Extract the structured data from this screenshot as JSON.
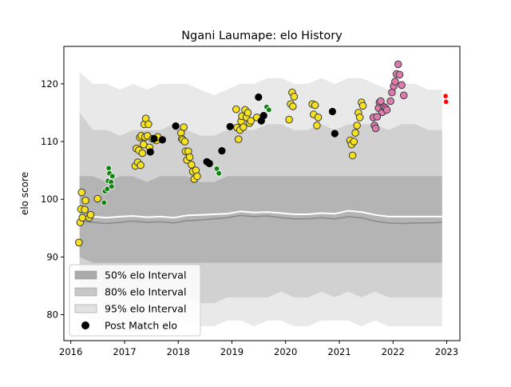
{
  "chart_data": {
    "type": "scatter",
    "title": "Ngani Laumape: elo History",
    "xlabel": "",
    "ylabel": "elo score",
    "xlim": [
      "2015-11-15",
      "2023-04-01"
    ],
    "ylim": [
      75.5,
      126.5
    ],
    "x_ticks": [
      "2016",
      "2017",
      "2018",
      "2019",
      "2020",
      "2021",
      "2022",
      "2023"
    ],
    "y_ticks": [
      80,
      90,
      100,
      110,
      120
    ],
    "grid": false,
    "legend_position": "lower-left",
    "legend": [
      {
        "label": "50% elo Interval",
        "kind": "patch",
        "color": "#aaaaaa"
      },
      {
        "label": "80% elo Interval",
        "kind": "patch",
        "color": "#c8c8c8"
      },
      {
        "label": "95% elo Interval",
        "kind": "patch",
        "color": "#e2e2e2"
      },
      {
        "label": "Post Match elo",
        "kind": "marker",
        "color": "#000000"
      }
    ],
    "band_x": [
      "2016-03-01",
      "2016-06-01",
      "2016-09-01",
      "2016-12-01",
      "2017-03-01",
      "2017-06-01",
      "2017-09-01",
      "2017-12-01",
      "2018-03-01",
      "2018-06-01",
      "2018-09-01",
      "2018-12-01",
      "2019-03-01",
      "2019-06-01",
      "2019-09-01",
      "2019-12-01",
      "2020-03-01",
      "2020-06-01",
      "2020-09-01",
      "2020-12-01",
      "2021-03-01",
      "2021-06-01",
      "2021-09-01",
      "2021-12-01",
      "2022-03-01",
      "2022-06-01",
      "2022-09-01",
      "2022-12-01"
    ],
    "bands": {
      "p95": {
        "upper": [
          122,
          120,
          120,
          119,
          120,
          119,
          120,
          120,
          120,
          119,
          118,
          119,
          120,
          120,
          121,
          121,
          120,
          120,
          121,
          120,
          121,
          121,
          120,
          119,
          120,
          120,
          119,
          119
        ],
        "lower": [
          80,
          79,
          79,
          78,
          79,
          78,
          78,
          79,
          79,
          78,
          78,
          79,
          79,
          78,
          79,
          79,
          78,
          78,
          79,
          79,
          79,
          78,
          79,
          78,
          78,
          78,
          78,
          78
        ]
      },
      "p80": {
        "upper": [
          115,
          112,
          112,
          111,
          112,
          112,
          112,
          113,
          112,
          111,
          111,
          112,
          112,
          112,
          113,
          113,
          112,
          112,
          113,
          112,
          113,
          113,
          113,
          112,
          113,
          113,
          112,
          112
        ],
        "lower": [
          85,
          84,
          83,
          83,
          83,
          82,
          83,
          83,
          83,
          82,
          82,
          83,
          83,
          83,
          83,
          84,
          83,
          83,
          84,
          83,
          84,
          83,
          84,
          83,
          83,
          83,
          83,
          83
        ]
      },
      "p50": {
        "upper": [
          104,
          104,
          103,
          104,
          104,
          103,
          104,
          104,
          104,
          103,
          103,
          104,
          104,
          104,
          104,
          104,
          104,
          104,
          104,
          104,
          104,
          104,
          104,
          104,
          104,
          104,
          104,
          104
        ],
        "lower": [
          90,
          89,
          89,
          89,
          89,
          89,
          89,
          89,
          89,
          89,
          89,
          89,
          89,
          89,
          89,
          89,
          89,
          89,
          89,
          89,
          89,
          89,
          89,
          89,
          89,
          89,
          89,
          89
        ]
      }
    },
    "median_line": {
      "x": [
        "2016-03-01",
        "2016-06-01",
        "2016-09-01",
        "2016-12-01",
        "2017-03-01",
        "2017-06-01",
        "2017-09-01",
        "2017-12-01",
        "2018-03-01",
        "2018-06-01",
        "2018-09-01",
        "2018-12-01",
        "2019-03-01",
        "2019-06-01",
        "2019-09-01",
        "2019-12-01",
        "2020-03-01",
        "2020-06-01",
        "2020-09-01",
        "2020-12-01",
        "2021-03-01",
        "2021-06-01",
        "2021-09-01",
        "2021-12-01",
        "2022-03-01",
        "2022-06-01",
        "2022-09-01",
        "2022-12-01"
      ],
      "gray": [
        96.2,
        96.0,
        95.8,
        96.0,
        96.2,
        96.0,
        96.1,
        95.9,
        96.3,
        96.4,
        96.6,
        96.8,
        97.2,
        97.0,
        97.1,
        96.8,
        96.6,
        96.6,
        96.8,
        96.6,
        97.0,
        96.8,
        96.2,
        95.9,
        95.8,
        95.9,
        95.9,
        96.0
      ],
      "white": [
        97.2,
        97.0,
        96.8,
        97.0,
        97.1,
        96.9,
        97.0,
        96.8,
        97.2,
        97.3,
        97.4,
        97.5,
        97.9,
        97.7,
        97.8,
        97.6,
        97.4,
        97.4,
        97.6,
        97.5,
        98.0,
        97.8,
        97.3,
        97.0,
        97.0,
        97.0,
        97.0,
        97.0
      ]
    },
    "series": [
      {
        "marker": "yellow",
        "color": "#f5e11d",
        "points": [
          [
            "2016-02-25",
            92.5
          ],
          [
            "2016-03-05",
            96.0
          ],
          [
            "2016-03-10",
            98.3
          ],
          [
            "2016-03-15",
            101.2
          ],
          [
            "2016-03-20",
            96.8
          ],
          [
            "2016-04-05",
            98.2
          ],
          [
            "2016-04-10",
            99.8
          ],
          [
            "2016-05-05",
            96.8
          ],
          [
            "2016-05-15",
            97.3
          ],
          [
            "2016-07-01",
            100.1
          ],
          [
            "2017-03-15",
            105.8
          ],
          [
            "2017-03-22",
            108.8
          ],
          [
            "2017-04-01",
            106.4
          ],
          [
            "2017-04-08",
            108.5
          ],
          [
            "2017-04-15",
            110.7
          ],
          [
            "2017-04-20",
            105.9
          ],
          [
            "2017-04-25",
            111.0
          ],
          [
            "2017-05-02",
            108.0
          ],
          [
            "2017-05-10",
            109.5
          ],
          [
            "2017-05-15",
            113.0
          ],
          [
            "2017-05-20",
            110.8
          ],
          [
            "2017-05-25",
            114.0
          ],
          [
            "2017-06-05",
            111.0
          ],
          [
            "2017-06-12",
            113.0
          ],
          [
            "2017-06-20",
            109.0
          ],
          [
            "2017-07-10",
            110.5
          ],
          [
            "2017-08-05",
            110.2
          ],
          [
            "2017-08-15",
            110.8
          ],
          [
            "2018-01-20",
            111.5
          ],
          [
            "2018-01-25",
            110.5
          ],
          [
            "2018-02-01",
            110.3
          ],
          [
            "2018-02-08",
            112.5
          ],
          [
            "2018-02-15",
            110.0
          ],
          [
            "2018-02-20",
            108.3
          ],
          [
            "2018-03-01",
            106.8
          ],
          [
            "2018-03-10",
            108.3
          ],
          [
            "2018-03-20",
            107.3
          ],
          [
            "2018-04-01",
            106.0
          ],
          [
            "2018-04-10",
            104.8
          ],
          [
            "2018-04-20",
            103.5
          ],
          [
            "2018-05-01",
            105.0
          ],
          [
            "2018-05-10",
            104.0
          ],
          [
            "2019-01-30",
            115.6
          ],
          [
            "2019-02-05",
            112.4
          ],
          [
            "2019-02-15",
            110.4
          ],
          [
            "2019-02-25",
            112.0
          ],
          [
            "2019-03-05",
            113.5
          ],
          [
            "2019-03-10",
            114.4
          ],
          [
            "2019-03-20",
            112.5
          ],
          [
            "2019-04-01",
            115.5
          ],
          [
            "2019-04-10",
            114.2
          ],
          [
            "2019-04-20",
            115.0
          ],
          [
            "2019-05-01",
            113.2
          ],
          [
            "2019-05-10",
            113.6
          ],
          [
            "2019-06-20",
            114.2
          ],
          [
            "2020-01-25",
            113.8
          ],
          [
            "2020-02-05",
            116.5
          ],
          [
            "2020-02-15",
            118.5
          ],
          [
            "2020-02-20",
            116.1
          ],
          [
            "2020-02-28",
            117.8
          ],
          [
            "2020-07-01",
            116.5
          ],
          [
            "2020-07-10",
            114.7
          ],
          [
            "2020-07-20",
            116.3
          ],
          [
            "2020-08-01",
            112.8
          ],
          [
            "2020-08-10",
            114.2
          ],
          [
            "2021-03-15",
            110.2
          ],
          [
            "2021-03-25",
            109.5
          ],
          [
            "2021-04-01",
            107.6
          ],
          [
            "2021-04-10",
            110.0
          ],
          [
            "2021-04-20",
            111.5
          ],
          [
            "2021-05-01",
            112.8
          ],
          [
            "2021-05-10",
            115.0
          ],
          [
            "2021-05-20",
            114.2
          ],
          [
            "2021-06-01",
            116.8
          ],
          [
            "2021-06-10",
            116.2
          ]
        ]
      },
      {
        "marker": "green",
        "color": "#138313",
        "points": [
          [
            "2016-08-15",
            99.4
          ],
          [
            "2016-08-20",
            101.4
          ],
          [
            "2016-09-05",
            101.8
          ],
          [
            "2016-09-10",
            103.2
          ],
          [
            "2016-09-15",
            105.4
          ],
          [
            "2016-09-20",
            104.5
          ],
          [
            "2016-10-01",
            103.0
          ],
          [
            "2016-10-05",
            102.2
          ],
          [
            "2016-10-10",
            104.0
          ],
          [
            "2018-09-20",
            105.3
          ],
          [
            "2018-10-05",
            104.5
          ],
          [
            "2019-08-25",
            116.0
          ],
          [
            "2019-09-10",
            115.5
          ]
        ]
      },
      {
        "marker": "pink",
        "color": "#e07aae",
        "points": [
          [
            "2021-08-20",
            114.2
          ],
          [
            "2021-08-28",
            112.8
          ],
          [
            "2021-09-05",
            112.3
          ],
          [
            "2021-09-15",
            114.3
          ],
          [
            "2021-09-25",
            115.8
          ],
          [
            "2021-10-01",
            116.8
          ],
          [
            "2021-10-10",
            117.0
          ],
          [
            "2021-10-20",
            115.1
          ],
          [
            "2021-11-01",
            116.0
          ],
          [
            "2021-11-10",
            115.8
          ],
          [
            "2021-11-20",
            115.5
          ],
          [
            "2021-12-15",
            117.0
          ],
          [
            "2021-12-25",
            118.5
          ],
          [
            "2022-01-05",
            119.6
          ],
          [
            "2022-01-15",
            120.4
          ],
          [
            "2022-01-25",
            121.7
          ],
          [
            "2022-02-05",
            123.4
          ],
          [
            "2022-02-15",
            121.6
          ],
          [
            "2022-03-01",
            119.8
          ],
          [
            "2022-03-15",
            118.0
          ]
        ]
      },
      {
        "marker": "black",
        "color": "#000000",
        "points": [
          [
            "2017-06-25",
            108.2
          ],
          [
            "2017-07-20",
            110.5
          ],
          [
            "2017-09-15",
            110.3
          ],
          [
            "2017-12-15",
            112.7
          ],
          [
            "2018-07-15",
            106.5
          ],
          [
            "2018-08-01",
            106.2
          ],
          [
            "2018-10-25",
            108.4
          ],
          [
            "2018-12-20",
            112.6
          ],
          [
            "2019-07-01",
            117.7
          ],
          [
            "2019-07-20",
            113.6
          ],
          [
            "2019-08-05",
            114.5
          ],
          [
            "2020-11-15",
            115.2
          ],
          [
            "2020-12-01",
            111.4
          ]
        ]
      },
      {
        "marker": "red",
        "color": "#ff0000",
        "points": [
          [
            "2022-12-25",
            117.9
          ],
          [
            "2022-12-28",
            116.9
          ]
        ]
      }
    ]
  }
}
